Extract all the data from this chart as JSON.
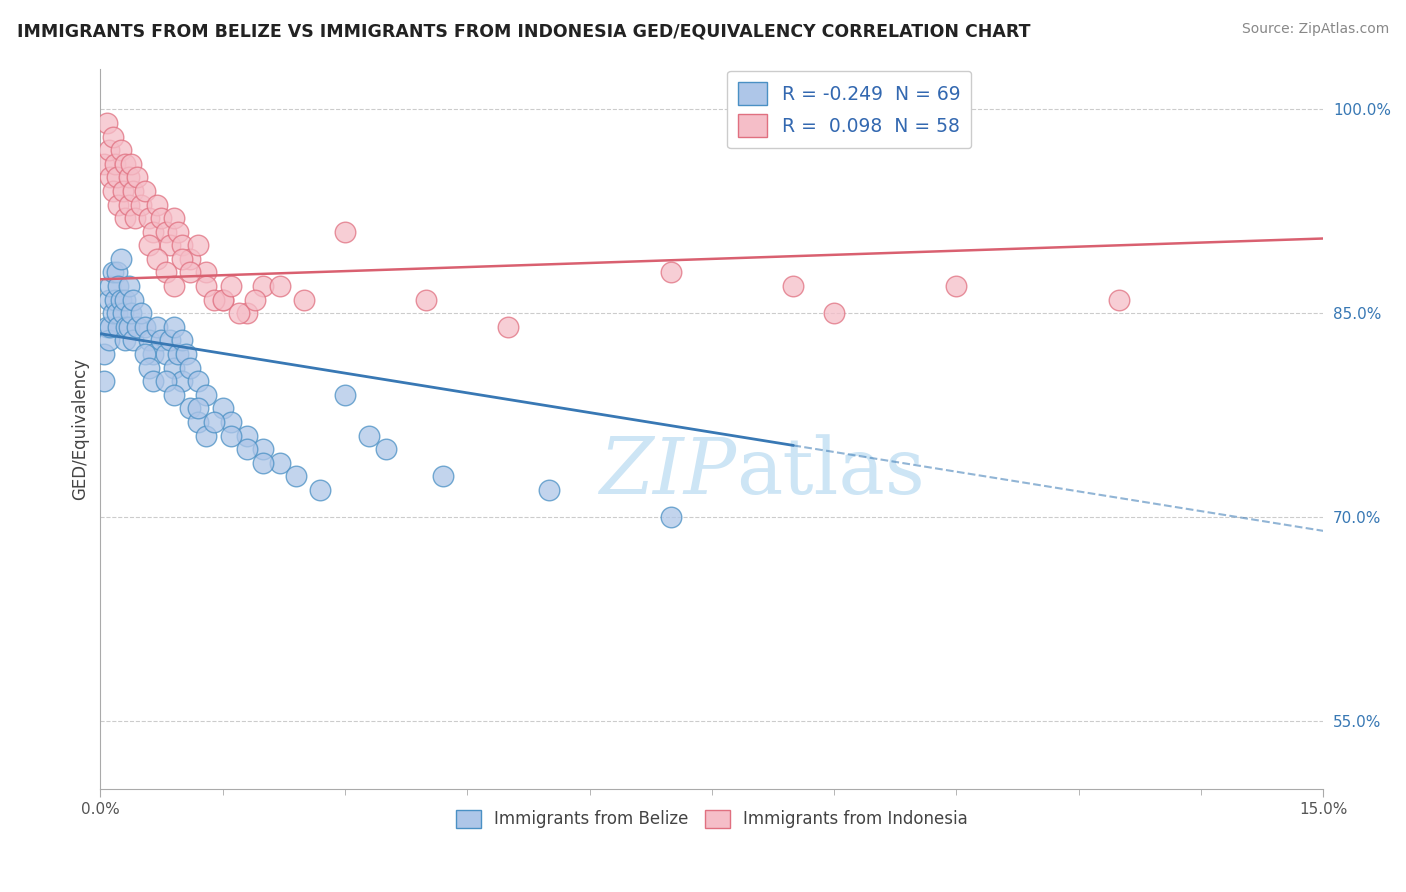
{
  "title": "IMMIGRANTS FROM BELIZE VS IMMIGRANTS FROM INDONESIA GED/EQUIVALENCY CORRELATION CHART",
  "source": "Source: ZipAtlas.com",
  "ylabel": "GED/Equivalency",
  "xmin": 0.0,
  "xmax": 15.0,
  "ymin": 50.0,
  "ymax": 103.0,
  "ytick_vals": [
    55.0,
    70.0,
    85.0,
    100.0
  ],
  "ytick_labels": [
    "55.0%",
    "70.0%",
    "85.0%",
    "100.0%"
  ],
  "legend_r_belize": "-0.249",
  "legend_n_belize": "69",
  "legend_r_indonesia": "0.098",
  "legend_n_indonesia": "58",
  "belize_color": "#aec6e8",
  "belize_edge_color": "#4a90c4",
  "belize_line_color": "#3878b4",
  "indonesia_color": "#f5bec8",
  "indonesia_edge_color": "#e07080",
  "indonesia_line_color": "#d96070",
  "watermark_color": "#cde5f5",
  "belize_line_x0": 0.0,
  "belize_line_x1": 15.0,
  "belize_line_y0": 83.5,
  "belize_line_y1": 69.0,
  "belize_solid_end": 8.5,
  "indonesia_line_x0": 0.0,
  "indonesia_line_x1": 15.0,
  "indonesia_line_y0": 87.5,
  "indonesia_line_y1": 90.5,
  "belize_x": [
    0.05,
    0.05,
    0.08,
    0.1,
    0.1,
    0.12,
    0.12,
    0.15,
    0.15,
    0.18,
    0.2,
    0.2,
    0.22,
    0.22,
    0.25,
    0.25,
    0.28,
    0.3,
    0.3,
    0.32,
    0.35,
    0.35,
    0.38,
    0.4,
    0.4,
    0.45,
    0.5,
    0.55,
    0.6,
    0.65,
    0.7,
    0.75,
    0.8,
    0.85,
    0.9,
    0.9,
    0.95,
    1.0,
    1.0,
    1.05,
    1.1,
    1.2,
    1.3,
    1.5,
    1.6,
    1.8,
    2.0,
    2.2,
    2.4,
    2.7,
    3.0,
    3.3,
    3.5,
    4.2,
    5.5,
    7.0,
    1.1,
    1.2,
    1.3,
    0.55,
    0.6,
    0.65,
    0.8,
    0.9,
    1.2,
    1.4,
    1.6,
    1.8,
    2.0
  ],
  "belize_y": [
    82,
    80,
    84,
    86,
    83,
    87,
    84,
    88,
    85,
    86,
    88,
    85,
    87,
    84,
    89,
    86,
    85,
    86,
    83,
    84,
    87,
    84,
    85,
    86,
    83,
    84,
    85,
    84,
    83,
    82,
    84,
    83,
    82,
    83,
    81,
    84,
    82,
    83,
    80,
    82,
    81,
    80,
    79,
    78,
    77,
    76,
    75,
    74,
    73,
    72,
    79,
    76,
    75,
    73,
    72,
    70,
    78,
    77,
    76,
    82,
    81,
    80,
    80,
    79,
    78,
    77,
    76,
    75,
    74
  ],
  "indonesia_x": [
    0.05,
    0.08,
    0.1,
    0.12,
    0.15,
    0.15,
    0.18,
    0.2,
    0.22,
    0.25,
    0.28,
    0.3,
    0.3,
    0.35,
    0.35,
    0.38,
    0.4,
    0.42,
    0.45,
    0.5,
    0.55,
    0.6,
    0.65,
    0.7,
    0.75,
    0.8,
    0.85,
    0.9,
    0.95,
    1.0,
    1.1,
    1.3,
    1.5,
    1.8,
    2.0,
    2.5,
    3.0,
    4.0,
    5.0,
    7.0,
    8.5,
    9.0,
    10.5,
    12.5,
    1.0,
    1.1,
    1.2,
    1.3,
    1.4,
    0.6,
    0.7,
    0.8,
    0.9,
    1.5,
    1.6,
    1.7,
    1.9,
    2.2
  ],
  "indonesia_y": [
    96,
    99,
    97,
    95,
    98,
    94,
    96,
    95,
    93,
    97,
    94,
    96,
    92,
    95,
    93,
    96,
    94,
    92,
    95,
    93,
    94,
    92,
    91,
    93,
    92,
    91,
    90,
    92,
    91,
    90,
    89,
    88,
    86,
    85,
    87,
    86,
    91,
    86,
    84,
    88,
    87,
    85,
    87,
    86,
    89,
    88,
    90,
    87,
    86,
    90,
    89,
    88,
    87,
    86,
    87,
    85,
    86,
    87
  ]
}
